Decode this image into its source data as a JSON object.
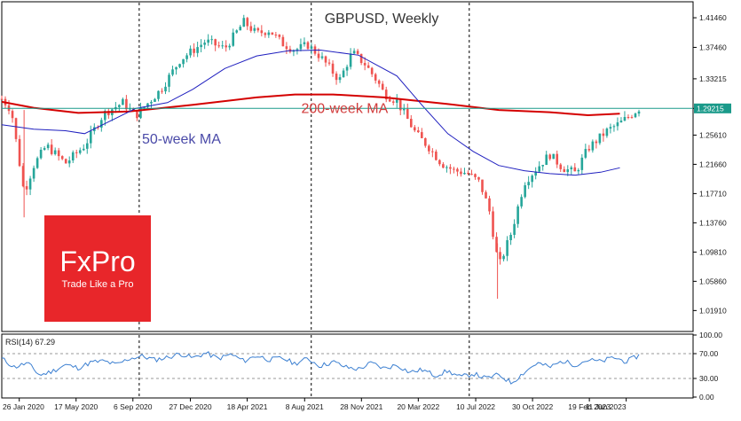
{
  "chart_data": [
    {
      "type": "candlestick",
      "title": "GBPUSD, Weekly",
      "y_ticks": [
        "1.41460",
        "1.37460",
        "1.33215",
        "1.29215",
        "1.25610",
        "1.21660",
        "1.17710",
        "1.13760",
        "1.09810",
        "1.05860",
        "1.01910"
      ],
      "ylim": [
        0.992,
        1.435
      ],
      "current_price": "1.29215",
      "x_ticks": [
        "26 Jan 2020",
        "17 May 2020",
        "6 Sep 2020",
        "27 Dec 2020",
        "18 Apr 2021",
        "8 Aug 2021",
        "28 Nov 2021",
        "20 Mar 2022",
        "10 Jul 2022",
        "30 Oct 2022",
        "19 Feb 2023",
        "11 Jun 2023"
      ],
      "x_tick_pos": [
        0.028,
        0.119,
        0.21,
        0.302,
        0.393,
        0.485,
        0.576,
        0.667,
        0.759,
        0.85,
        0.941,
        1.0
      ],
      "annotations": [
        {
          "text": "200-week MA",
          "color": "#d23c3c",
          "x": 0.47,
          "y": 1.293
        },
        {
          "text": "50-week MA",
          "color": "#4a4aa8",
          "x": 0.22,
          "y": 1.252
        }
      ],
      "ma200": {
        "name": "200-week MA",
        "color": "#d40000",
        "x": [
          0,
          0.05,
          0.12,
          0.2,
          0.3,
          0.4,
          0.46,
          0.52,
          0.6,
          0.7,
          0.78,
          0.86,
          0.92,
          0.97
        ],
        "y": [
          1.301,
          1.293,
          1.286,
          1.288,
          1.297,
          1.307,
          1.311,
          1.311,
          1.307,
          1.298,
          1.29,
          1.287,
          1.283,
          1.285
        ]
      },
      "ma50": {
        "name": "50-week MA",
        "color": "#1f1fbf",
        "x": [
          0,
          0.05,
          0.1,
          0.13,
          0.17,
          0.21,
          0.26,
          0.3,
          0.35,
          0.4,
          0.45,
          0.5,
          0.56,
          0.62,
          0.66,
          0.7,
          0.74,
          0.78,
          0.82,
          0.86,
          0.9,
          0.94,
          0.97
        ],
        "y": [
          1.27,
          1.264,
          1.262,
          1.258,
          1.275,
          1.292,
          1.3,
          1.318,
          1.346,
          1.363,
          1.37,
          1.371,
          1.364,
          1.336,
          1.296,
          1.258,
          1.234,
          1.215,
          1.208,
          1.204,
          1.202,
          1.206,
          1.212
        ]
      },
      "price_anchors": {
        "x": [
          0,
          0.015,
          0.035,
          0.05,
          0.07,
          0.1,
          0.13,
          0.16,
          0.19,
          0.21,
          0.25,
          0.28,
          0.32,
          0.35,
          0.38,
          0.4,
          0.42,
          0.44,
          0.46,
          0.48,
          0.5,
          0.53,
          0.55,
          0.57,
          0.59,
          0.6,
          0.62,
          0.65,
          0.67,
          0.69,
          0.71,
          0.73,
          0.75,
          0.765,
          0.78,
          0.8,
          0.82,
          0.84,
          0.86,
          0.88,
          0.9,
          0.92,
          0.95,
          0.97,
          1.0
        ],
        "y": [
          1.305,
          1.29,
          1.178,
          1.215,
          1.242,
          1.218,
          1.242,
          1.285,
          1.3,
          1.282,
          1.318,
          1.358,
          1.383,
          1.373,
          1.409,
          1.393,
          1.398,
          1.38,
          1.371,
          1.378,
          1.362,
          1.33,
          1.368,
          1.352,
          1.328,
          1.312,
          1.302,
          1.258,
          1.24,
          1.218,
          1.208,
          1.205,
          1.192,
          1.155,
          1.078,
          1.125,
          1.192,
          1.212,
          1.23,
          1.212,
          1.205,
          1.238,
          1.262,
          1.272,
          1.292
        ]
      },
      "vlines": [
        0.215,
        0.485,
        0.733
      ]
    },
    {
      "type": "line",
      "title": "RSI(14) 67.29",
      "y_ticks": [
        "100.00",
        "70.00",
        "30.00",
        "0.00"
      ],
      "ylim": [
        0,
        100
      ],
      "levels": [
        70,
        30
      ],
      "x": [
        0,
        0.02,
        0.04,
        0.06,
        0.08,
        0.1,
        0.12,
        0.14,
        0.16,
        0.18,
        0.2,
        0.22,
        0.24,
        0.26,
        0.28,
        0.3,
        0.32,
        0.34,
        0.36,
        0.38,
        0.4,
        0.42,
        0.44,
        0.46,
        0.48,
        0.5,
        0.52,
        0.54,
        0.56,
        0.58,
        0.6,
        0.62,
        0.64,
        0.66,
        0.68,
        0.7,
        0.72,
        0.74,
        0.76,
        0.78,
        0.8,
        0.82,
        0.84,
        0.86,
        0.88,
        0.9,
        0.92,
        0.94,
        0.96,
        0.98,
        1.0
      ],
      "values": [
        62,
        48,
        55,
        35,
        42,
        52,
        47,
        56,
        58,
        52,
        62,
        66,
        60,
        64,
        70,
        63,
        71,
        62,
        69,
        58,
        67,
        60,
        63,
        54,
        62,
        50,
        57,
        48,
        45,
        55,
        46,
        52,
        40,
        44,
        35,
        42,
        32,
        38,
        30,
        36,
        23,
        40,
        55,
        48,
        58,
        52,
        60,
        57,
        64,
        57,
        67
      ],
      "color": "#3b7fd1"
    }
  ],
  "logo": {
    "brand": "FxPro",
    "tagline": "Trade Like a Pro",
    "color": "#e8262a"
  }
}
